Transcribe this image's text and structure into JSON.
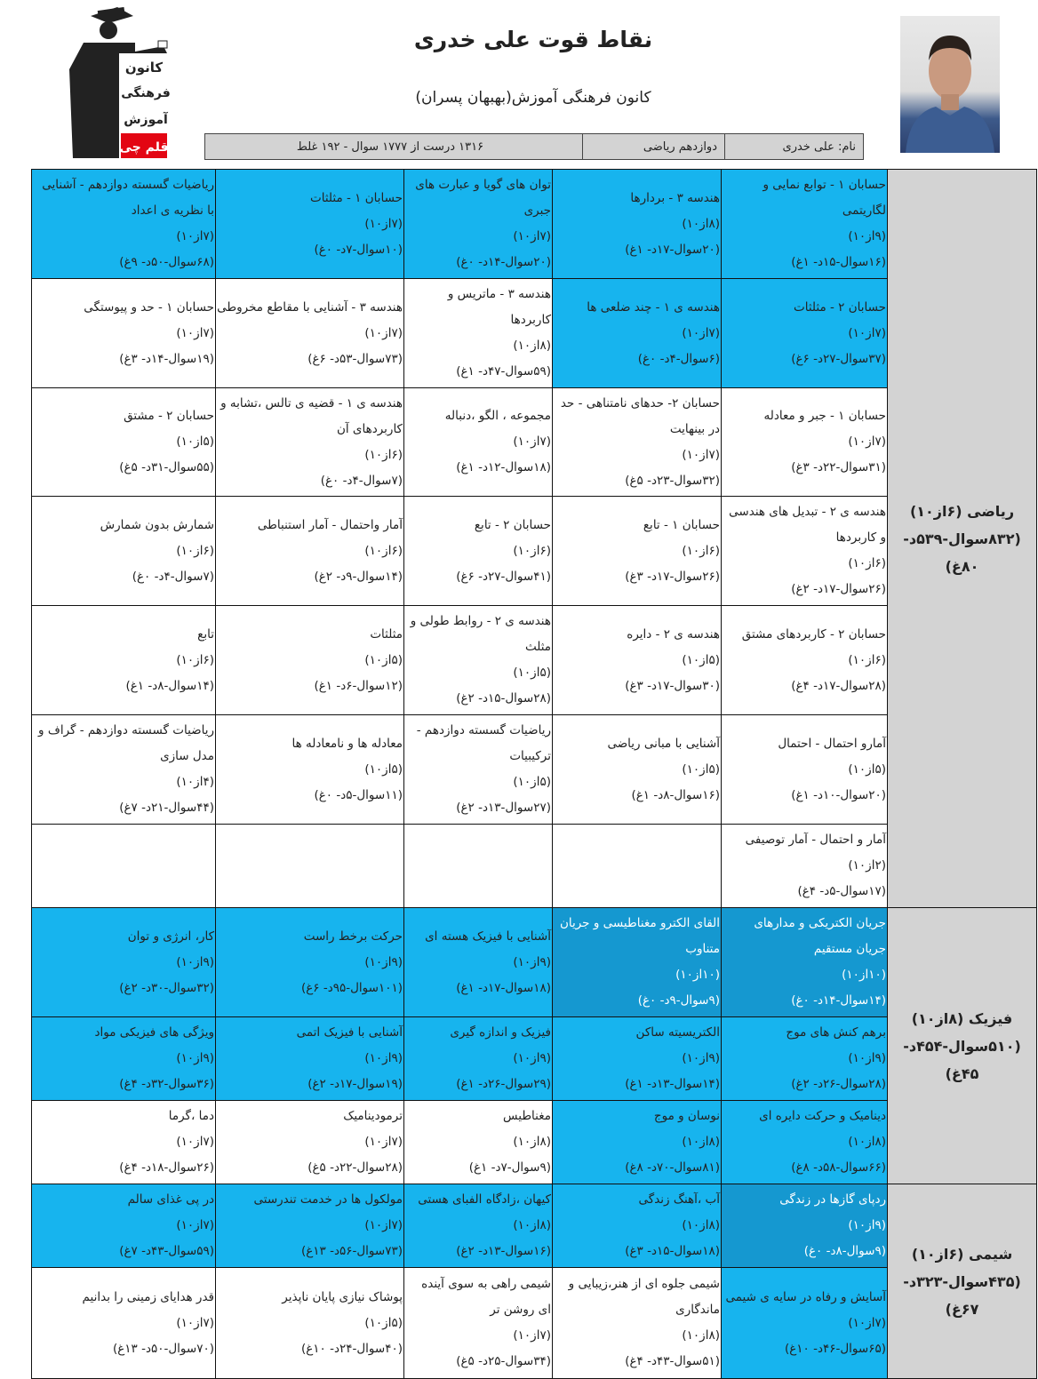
{
  "header": {
    "title": "نقاط قوت علی خدری",
    "subtitle": "کانون فرهنگی آموزش(بهبهان پسران)",
    "name": "نام: علی خدری",
    "grade": "دوازدهم ریاضی",
    "result": "۱۳۱۶ درست از ۱۷۷۷ سوال - ۱۹۲ غلط",
    "logo_text": [
      "کانون",
      "فرهنگی",
      "آموزش",
      "قلم چی"
    ]
  },
  "colors": {
    "blue": "#17b4ee",
    "dark": "#1598d0",
    "label": "#d3d3d3"
  },
  "subjects": [
    {
      "label": [
        "ریاضی (۶از۱۰)",
        "(۸۳۲سوال-۵۳۹د-",
        "۸۰غ)"
      ],
      "rows": [
        [
          {
            "color": "blue",
            "title": "حسابان ۱ - توابع نمایی و لگاریتمی",
            "score": "(۹از۱۰)",
            "stats": "(۱۶سوال-۱۵د- ۱غ)"
          },
          {
            "color": "blue",
            "title": "هندسه ۳ - بردارها",
            "score": "(۸از۱۰)",
            "stats": "(۲۰سوال-۱۷د- ۱غ)"
          },
          {
            "color": "blue",
            "title": "توان های گویا و عبارت های جبری",
            "score": "(۷از۱۰)",
            "stats": "(۲۰سوال-۱۴د- ۰غ)"
          },
          {
            "color": "blue",
            "title": "حسابان ۱ - مثلثات",
            "score": "(۷از۱۰)",
            "stats": "(۱۰سوال-۷د- ۰غ)"
          },
          {
            "color": "blue",
            "title": "ریاضیات گسسته دوازدهم - آشنایی با نظریه ی اعداد",
            "score": "(۷از۱۰)",
            "stats": "(۶۸سوال-۵۰د- ۹غ)"
          }
        ],
        [
          {
            "color": "blue",
            "title": "حسابان ۲ - مثلثات",
            "score": "(۷از۱۰)",
            "stats": "(۳۷سوال-۲۷د- ۶غ)"
          },
          {
            "color": "blue",
            "title": "هندسه ی ۱ - چند ضلعی ها",
            "score": "(۷از۱۰)",
            "stats": "(۶سوال-۴د- ۰غ)"
          },
          {
            "color": "white",
            "title": "هندسه ۳ - ماتریس و کاربردها",
            "score": "(۸از۱۰)",
            "stats": "(۵۹سوال-۴۷د- ۱غ)"
          },
          {
            "color": "white",
            "title": "هندسه ۳ - آشنایی با مقاطع مخروطی",
            "score": "(۷از۱۰)",
            "stats": "(۷۳سوال-۵۳د- ۶غ)"
          },
          {
            "color": "white",
            "title": "حسابان ۱ - حد و پیوستگی",
            "score": "(۷از۱۰)",
            "stats": "(۱۹سوال-۱۴د- ۳غ)"
          }
        ],
        [
          {
            "color": "white",
            "title": "حسابان ۱ - جبر و معادله",
            "score": "(۷از۱۰)",
            "stats": "(۳۱سوال-۲۲د- ۳غ)"
          },
          {
            "color": "white",
            "title": "حسابان ۲- حدهای نامتناهی - حد در بینهایت",
            "score": "(۷از۱۰)",
            "stats": "(۳۲سوال-۲۳د- ۵غ)"
          },
          {
            "color": "white",
            "title": "مجموعه ، الگو ،دنباله",
            "score": "(۷از۱۰)",
            "stats": "(۱۸سوال-۱۲د- ۱غ)"
          },
          {
            "color": "white",
            "title": "هندسه ی ۱ - قضیه ی تالس ،تشابه و کاربردهای آن",
            "score": "(۶از۱۰)",
            "stats": "(۷سوال-۴د- ۰غ)"
          },
          {
            "color": "white",
            "title": "حسابان ۲ - مشتق",
            "score": "(۵از۱۰)",
            "stats": "(۵۵سوال-۳۱د- ۵غ)"
          }
        ],
        [
          {
            "color": "white",
            "title": "هندسه ی ۲ - تبدیل های هندسی و کاربردها",
            "score": "(۶از۱۰)",
            "stats": "(۲۶سوال-۱۷د- ۲غ)"
          },
          {
            "color": "white",
            "title": "حسابان ۱ - تابع",
            "score": "(۶از۱۰)",
            "stats": "(۲۶سوال-۱۷د- ۳غ)"
          },
          {
            "color": "white",
            "title": "حسابان ۲ - تابع",
            "score": "(۶از۱۰)",
            "stats": "(۴۱سوال-۲۷د- ۶غ)"
          },
          {
            "color": "white",
            "title": "آمار واحتمال - آمار استنباطی",
            "score": "(۶از۱۰)",
            "stats": "(۱۴سوال-۹د- ۲غ)"
          },
          {
            "color": "white",
            "title": "شمارش بدون شمارش",
            "score": "(۶از۱۰)",
            "stats": "(۷سوال-۴د- ۰غ)"
          }
        ],
        [
          {
            "color": "white",
            "title": "حسابان ۲ - کاربردهای مشتق",
            "score": "(۶از۱۰)",
            "stats": "(۲۸سوال-۱۷د- ۴غ)"
          },
          {
            "color": "white",
            "title": "هندسه ی ۲ - دایره",
            "score": "(۵از۱۰)",
            "stats": "(۳۰سوال-۱۷د- ۳غ)"
          },
          {
            "color": "white",
            "title": "هندسه ی ۲ - روابط طولی و مثلث",
            "score": "(۵از۱۰)",
            "stats": "(۲۸سوال-۱۵د- ۲غ)"
          },
          {
            "color": "white",
            "title": "مثلثات",
            "score": "(۵از۱۰)",
            "stats": "(۱۲سوال-۶د- ۱غ)"
          },
          {
            "color": "white",
            "title": "تابع",
            "score": "(۶از۱۰)",
            "stats": "(۱۴سوال-۸د- ۱غ)"
          }
        ],
        [
          {
            "color": "white",
            "title": "آمارو احتمال - احتمال",
            "score": "(۵از۱۰)",
            "stats": "(۲۰سوال-۱۰د- ۱غ)"
          },
          {
            "color": "white",
            "title": "آشنایی با مبانی ریاضی",
            "score": "(۵از۱۰)",
            "stats": "(۱۶سوال-۸د- ۱غ)"
          },
          {
            "color": "white",
            "title": "ریاضیات گسسته دوازدهم - ترکیبیات",
            "score": "(۵از۱۰)",
            "stats": "(۲۷سوال-۱۳د- ۲غ)"
          },
          {
            "color": "white",
            "title": "معادله ها و نامعادله ها",
            "score": "(۵از۱۰)",
            "stats": "(۱۱سوال-۵د- ۰غ)"
          },
          {
            "color": "white",
            "title": "ریاضیات گسسته دوازدهم - گراف و مدل سازی",
            "score": "(۴از۱۰)",
            "stats": "(۴۴سوال-۲۱د- ۷غ)"
          }
        ],
        [
          {
            "color": "white",
            "title": "آمار و احتمال - آمار توصیفی",
            "score": "(۲از۱۰)",
            "stats": "(۱۷سوال-۵د- ۴غ)"
          },
          null,
          null,
          null,
          null
        ]
      ]
    },
    {
      "label": [
        "فیزیک (۸از۱۰)",
        "(۵۱۰سوال-۴۵۴د-",
        "۴۵غ)"
      ],
      "rows": [
        [
          {
            "color": "dark",
            "title": "جریان الکتریکی و مدارهای جریان مستقیم",
            "score": "(۱۰از۱۰)",
            "stats": "(۱۴سوال-۱۴د- ۰غ)"
          },
          {
            "color": "dark",
            "title": "القای الکترو مغناطیسی و جریان متناوب",
            "score": "(۱۰از۱۰)",
            "stats": "(۹سوال-۹د- ۰غ)"
          },
          {
            "color": "blue",
            "title": "آشنایی با فیزیک هسته ای",
            "score": "(۹از۱۰)",
            "stats": "(۱۸سوال-۱۷د- ۱غ)"
          },
          {
            "color": "blue",
            "title": "حرکت برخط راست",
            "score": "(۹از۱۰)",
            "stats": "(۱۰۱سوال-۹۵د- ۶غ)"
          },
          {
            "color": "blue",
            "title": "کار، انرژی و توان",
            "score": "(۹از۱۰)",
            "stats": "(۳۲سوال-۳۰د- ۲غ)"
          }
        ],
        [
          {
            "color": "blue",
            "title": "برهم کنش های موج",
            "score": "(۹از۱۰)",
            "stats": "(۲۸سوال-۲۶د- ۲غ)"
          },
          {
            "color": "blue",
            "title": "الکتریسیته ساکن",
            "score": "(۹از۱۰)",
            "stats": "(۱۴سوال-۱۳د- ۱غ)"
          },
          {
            "color": "blue",
            "title": "فیزیک و اندازه گیری",
            "score": "(۹از۱۰)",
            "stats": "(۲۹سوال-۲۶د- ۱غ)"
          },
          {
            "color": "blue",
            "title": "آشنایی با فیزیک اتمی",
            "score": "(۹از۱۰)",
            "stats": "(۱۹سوال-۱۷د- ۲غ)"
          },
          {
            "color": "blue",
            "title": "ویژگی های فیزیکی مواد",
            "score": "(۹از۱۰)",
            "stats": "(۳۶سوال-۳۲د- ۴غ)"
          }
        ],
        [
          {
            "color": "blue",
            "title": "دینامیک و حرکت دایره ای",
            "score": "(۸از۱۰)",
            "stats": "(۶۶سوال-۵۸د- ۸غ)"
          },
          {
            "color": "blue",
            "title": "نوسان و موج",
            "score": "(۸از۱۰)",
            "stats": "(۸۱سوال-۷۰د- ۸غ)"
          },
          {
            "color": "white",
            "title": "مغناطیس",
            "score": "(۸از۱۰)",
            "stats": "(۹سوال-۷د- ۱غ)"
          },
          {
            "color": "white",
            "title": "ترمودینامیک",
            "score": "(۷از۱۰)",
            "stats": "(۲۸سوال-۲۲د- ۵غ)"
          },
          {
            "color": "white",
            "title": "دما ،گرما",
            "score": "(۷از۱۰)",
            "stats": "(۲۶سوال-۱۸د- ۴غ)"
          }
        ]
      ]
    },
    {
      "label": [
        "شیمی (۶از۱۰)",
        "(۴۳۵سوال-۳۲۳د-",
        "۶۷غ)"
      ],
      "rows": [
        [
          {
            "color": "dark",
            "title": "ردپای گازها در زندگی",
            "score": "(۹از۱۰)",
            "stats": "(۹سوال-۸د- ۰غ)"
          },
          {
            "color": "blue",
            "title": "آب ،آهنگ زندگی",
            "score": "(۸از۱۰)",
            "stats": "(۱۸سوال-۱۵د- ۳غ)"
          },
          {
            "color": "blue",
            "title": "کیهان ،زادگاه الفبای هستی",
            "score": "(۸از۱۰)",
            "stats": "(۱۶سوال-۱۳د- ۲غ)"
          },
          {
            "color": "blue",
            "title": "مولکول ها در خدمت تندرستی",
            "score": "(۷از۱۰)",
            "stats": "(۷۳سوال-۵۶د- ۱۳غ)"
          },
          {
            "color": "blue",
            "title": "در پی غذای سالم",
            "score": "(۷از۱۰)",
            "stats": "(۵۹سوال-۴۳د- ۷غ)"
          }
        ],
        [
          {
            "color": "blue",
            "title": "آسایش و رفاه در سایه ی شیمی",
            "score": "(۷از۱۰)",
            "stats": "(۶۵سوال-۴۶د- ۱۰غ)"
          },
          {
            "color": "white",
            "title": "شیمی جلوه ای از هنر،زیبایی و ماندگاری",
            "score": "(۸از۱۰)",
            "stats": "(۵۱سوال-۴۳د- ۴غ)"
          },
          {
            "color": "white",
            "title": "شیمی راهی به سوی آینده ای روشن تر",
            "score": "(۷از۱۰)",
            "stats": "(۳۴سوال-۲۵د- ۵غ)"
          },
          {
            "color": "white",
            "title": "پوشاک نیازی پایان ناپذیر",
            "score": "(۵از۱۰)",
            "stats": "(۴۰سوال-۲۴د- ۱۰غ)"
          },
          {
            "color": "white",
            "title": "قدر هدایای زمینی را بدانیم",
            "score": "(۷از۱۰)",
            "stats": "(۷۰سوال-۵۰د- ۱۳غ)"
          }
        ]
      ]
    }
  ]
}
